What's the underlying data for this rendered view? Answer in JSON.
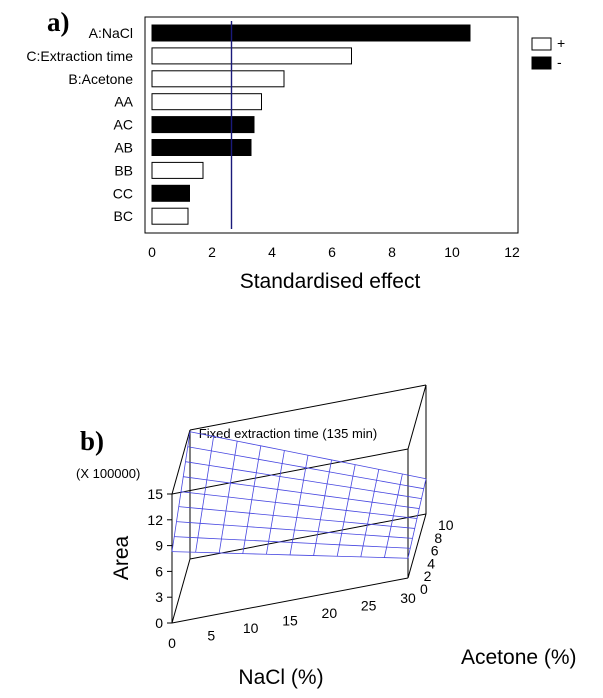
{
  "chart_data": [
    {
      "type": "bar",
      "panel_label": "a)",
      "orientation": "horizontal",
      "categories": [
        "A:NaCl",
        "C:Extraction time",
        "B:Acetone",
        "AA",
        "AC",
        "AB",
        "BB",
        "CC",
        "BC"
      ],
      "values": [
        10.6,
        6.65,
        4.4,
        3.65,
        3.4,
        3.3,
        1.7,
        1.25,
        1.2
      ],
      "signs": [
        "-",
        "+",
        "+",
        "+",
        "-",
        "-",
        "+",
        "-",
        "+"
      ],
      "xlabel": "Standardised effect",
      "xlim": [
        0,
        12
      ],
      "xticks": [
        0,
        2,
        4,
        6,
        8,
        10,
        12
      ],
      "reference_line": 2.65,
      "legend": {
        "placement": "top-right",
        "entries": [
          {
            "label": "+",
            "fill": "#ffffff"
          },
          {
            "label": "-",
            "fill": "#000000"
          }
        ]
      },
      "colors": {
        "positive_fill": "#ffffff",
        "negative_fill": "#000000",
        "reference_line": "#1a1a7a"
      }
    },
    {
      "type": "surface",
      "panel_label": "b)",
      "title": "Fixed extraction time (135 min)",
      "xlabel": "NaCl (%)",
      "ylabel": "Acetone (%)",
      "zlabel": "Area",
      "z_multiplier": "(X 100000)",
      "xlim": [
        0,
        30
      ],
      "ylim": [
        0,
        10
      ],
      "zlim": [
        0,
        15
      ],
      "xticks": [
        0,
        5,
        10,
        15,
        20,
        25,
        30
      ],
      "yticks": [
        0,
        2,
        4,
        6,
        8,
        10
      ],
      "zticks": [
        0,
        3,
        6,
        9,
        12,
        15
      ],
      "grid_x": [
        0,
        3,
        6,
        9,
        12,
        15,
        18,
        21,
        24,
        27,
        30
      ],
      "grid_y": [
        0,
        1.25,
        2.5,
        3.75,
        5,
        6.25,
        7.5,
        8.75,
        10
      ],
      "z_corners": {
        "nacl0_acetone0": 8.3,
        "nacl0_acetone10": 14.8,
        "nacl30_acetone0": 2.3,
        "nacl30_acetone10": 4.1
      },
      "colors": {
        "mesh": "#4646e0"
      }
    }
  ]
}
